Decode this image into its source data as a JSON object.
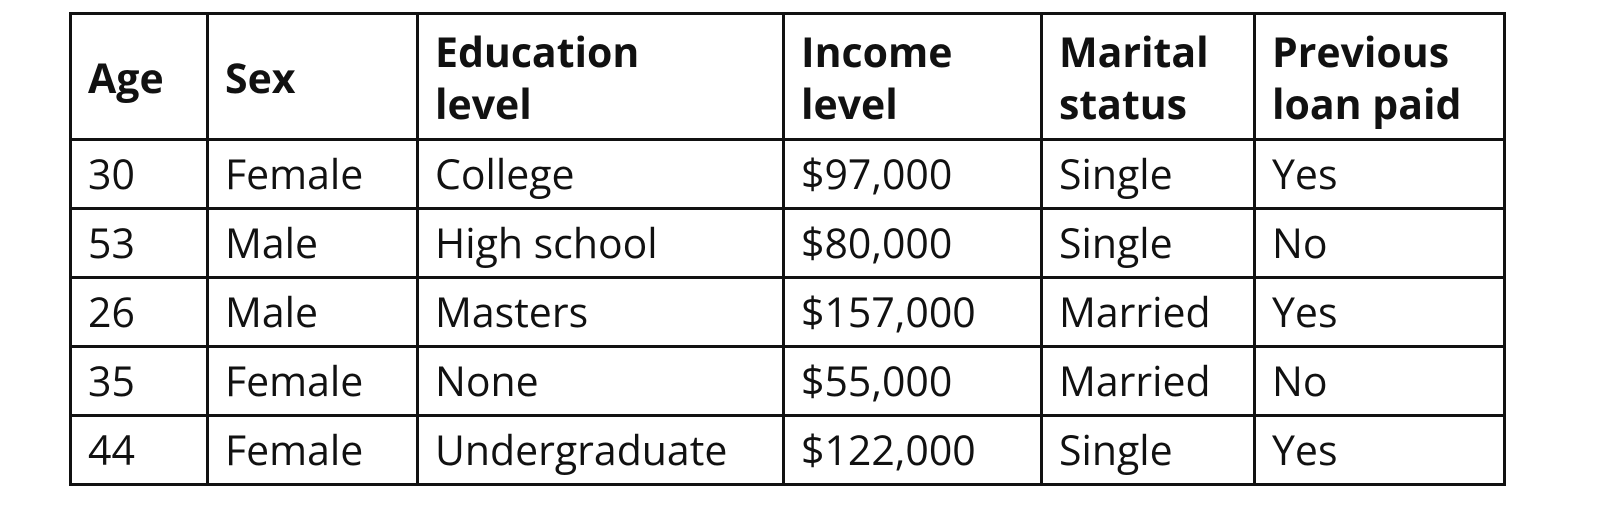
{
  "table": {
    "headers": [
      [
        "Age"
      ],
      [
        "Sex"
      ],
      [
        "Education",
        "level"
      ],
      [
        "Income",
        "level"
      ],
      [
        "Marital",
        "status"
      ],
      [
        "Previous",
        "loan paid"
      ]
    ],
    "rows": [
      [
        "30",
        "Female",
        "College",
        "$97,000",
        "Single",
        "Yes"
      ],
      [
        "53",
        "Male",
        "High school",
        "$80,000",
        "Single",
        "No"
      ],
      [
        "26",
        "Male",
        "Masters",
        "$157,000",
        "Married",
        "Yes"
      ],
      [
        "35",
        "Female",
        "None",
        "$55,000",
        "Married",
        "No"
      ],
      [
        "44",
        "Female",
        "Undergraduate",
        "$122,000",
        "Single",
        "Yes"
      ]
    ]
  }
}
